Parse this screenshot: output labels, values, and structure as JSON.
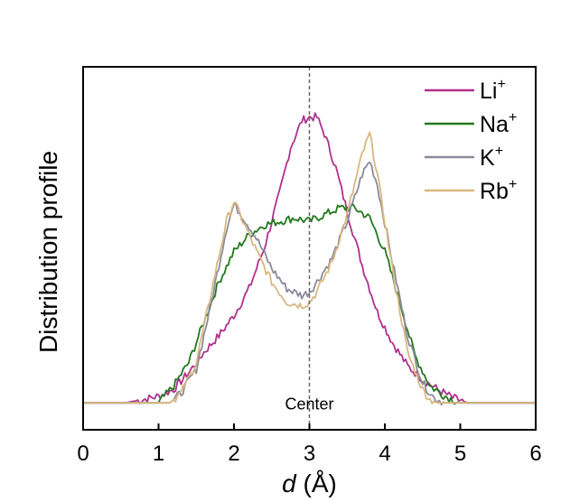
{
  "chart_data": {
    "type": "line",
    "title": "",
    "xlabel_italic": "d",
    "xlabel_rest": " (Å)",
    "ylabel": "Distribution profile",
    "xlim": [
      0,
      6
    ],
    "ylim": [
      -0.08,
      1.0
    ],
    "xticks": [
      "0",
      "1",
      "2",
      "3",
      "4",
      "5",
      "6"
    ],
    "annotation": {
      "text": "Center",
      "x": 3
    },
    "legend": {
      "position": "top-right"
    },
    "series": [
      {
        "name": "Li",
        "sup": "+",
        "color": "#b0308e",
        "x": [
          0,
          0.55,
          0.8,
          1.0,
          1.2,
          1.4,
          1.6,
          1.8,
          2.0,
          2.2,
          2.4,
          2.6,
          2.75,
          2.9,
          3.0,
          3.1,
          3.2,
          3.35,
          3.5,
          3.7,
          3.9,
          4.1,
          4.3,
          4.5,
          4.7,
          4.9,
          5.1,
          6.0
        ],
        "y": [
          0,
          0,
          0.01,
          0.02,
          0.04,
          0.09,
          0.15,
          0.2,
          0.26,
          0.34,
          0.46,
          0.62,
          0.76,
          0.84,
          0.85,
          0.85,
          0.8,
          0.7,
          0.57,
          0.41,
          0.27,
          0.18,
          0.11,
          0.07,
          0.04,
          0.015,
          0,
          0
        ]
      },
      {
        "name": "Na",
        "sup": "+",
        "color": "#247820",
        "x": [
          0,
          1.0,
          1.2,
          1.4,
          1.6,
          1.8,
          2.0,
          2.2,
          2.4,
          2.6,
          2.8,
          3.0,
          3.2,
          3.4,
          3.6,
          3.8,
          4.0,
          4.2,
          4.4,
          4.6,
          4.8,
          5.0,
          6.0
        ],
        "y": [
          0,
          0,
          0.05,
          0.12,
          0.24,
          0.36,
          0.45,
          0.5,
          0.53,
          0.54,
          0.55,
          0.54,
          0.56,
          0.58,
          0.58,
          0.55,
          0.45,
          0.3,
          0.14,
          0.05,
          0.02,
          0,
          0
        ]
      },
      {
        "name": "K",
        "sup": "+",
        "color": "#8a8a9a",
        "x": [
          0,
          1.15,
          1.3,
          1.5,
          1.7,
          1.9,
          2.0,
          2.1,
          2.3,
          2.5,
          2.7,
          2.9,
          3.0,
          3.1,
          3.3,
          3.5,
          3.7,
          3.8,
          3.9,
          4.1,
          4.3,
          4.5,
          4.65,
          4.8,
          6.0
        ],
        "y": [
          0,
          0,
          0.03,
          0.1,
          0.3,
          0.52,
          0.59,
          0.56,
          0.49,
          0.4,
          0.34,
          0.32,
          0.33,
          0.36,
          0.43,
          0.54,
          0.68,
          0.72,
          0.65,
          0.42,
          0.2,
          0.06,
          0.015,
          0,
          0
        ]
      },
      {
        "name": "Rb",
        "sup": "+",
        "color": "#d8b880",
        "x": [
          0,
          1.15,
          1.3,
          1.5,
          1.7,
          1.9,
          2.0,
          2.1,
          2.3,
          2.5,
          2.7,
          2.9,
          3.0,
          3.1,
          3.3,
          3.5,
          3.7,
          3.8,
          3.9,
          4.1,
          4.3,
          4.5,
          4.6,
          4.7,
          6.0
        ],
        "y": [
          0,
          0,
          0.03,
          0.12,
          0.33,
          0.54,
          0.6,
          0.55,
          0.45,
          0.36,
          0.3,
          0.29,
          0.3,
          0.33,
          0.42,
          0.56,
          0.74,
          0.8,
          0.68,
          0.4,
          0.15,
          0.04,
          0.01,
          0,
          0
        ]
      }
    ]
  }
}
